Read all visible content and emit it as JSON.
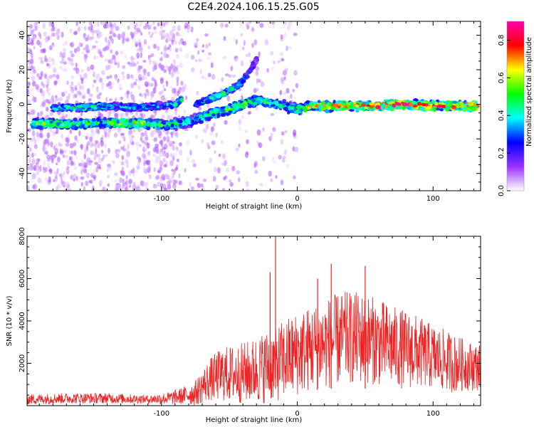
{
  "title": "C2E4.2024.106.15.25.G05",
  "chart_data": [
    {
      "type": "heatmap",
      "xlabel": "Height of straight line (km)",
      "ylabel": "Frequency (Hz)",
      "xlim": [
        -199,
        135
      ],
      "ylim": [
        -50,
        48
      ],
      "x_ticks": [
        -100,
        0,
        100
      ],
      "x_tick_labels": [
        "-100",
        "0",
        "100"
      ],
      "y_ticks": [
        -40,
        -20,
        0,
        20,
        40
      ],
      "y_tick_labels": [
        "-40",
        "-20",
        "0",
        "20",
        "40"
      ],
      "colorbar": {
        "label": "Normalized spectral amplitude",
        "range": [
          0,
          0.9
        ],
        "ticks": [
          0.0,
          0.2,
          0.4,
          0.6,
          0.8
        ],
        "tick_labels": [
          "0.0",
          "0.2",
          "0.4",
          "0.6",
          "0.8"
        ],
        "colormap": [
          "#ffffff",
          "#9b30ff",
          "#0000ff",
          "#00ffff",
          "#00ff00",
          "#ffff00",
          "#ff0000",
          "#ff00aa"
        ]
      },
      "traces": [
        {
          "x": [
            -195,
            -185,
            -170,
            -150,
            -130,
            -110,
            -95,
            -80,
            -65,
            -50,
            -40,
            -30,
            -20,
            -10,
            0,
            10,
            20,
            40,
            60,
            80,
            100,
            120,
            133
          ],
          "y": [
            -11,
            -11,
            -12,
            -11,
            -11,
            -11,
            -12,
            -10,
            -6,
            -3,
            0,
            2,
            1,
            -1,
            -3,
            -1,
            -1,
            -1,
            -1,
            0,
            -1,
            -1,
            -1
          ],
          "amplitude": [
            0.5,
            0.55,
            0.5,
            0.45,
            0.6,
            0.55,
            0.45,
            0.4,
            0.45,
            0.5,
            0.55,
            0.5,
            0.45,
            0.45,
            0.5,
            0.6,
            0.65,
            0.7,
            0.75,
            0.8,
            0.7,
            0.7,
            0.75
          ]
        },
        {
          "x": [
            -180,
            -160,
            -140,
            -120,
            -100,
            -90,
            -85
          ],
          "y": [
            -2,
            -2,
            -1,
            -2,
            -1,
            0,
            3
          ],
          "amplitude": [
            0.4,
            0.45,
            0.4,
            0.35,
            0.35,
            0.4,
            0.45
          ]
        },
        {
          "x": [
            -75,
            -65,
            -55,
            -48,
            -42,
            -36,
            -30
          ],
          "y": [
            0,
            3,
            6,
            9,
            12,
            18,
            26
          ],
          "amplitude": [
            0.4,
            0.45,
            0.5,
            0.45,
            0.35,
            0.25,
            0.2
          ]
        }
      ]
    },
    {
      "type": "line",
      "xlabel": "Height of straight line (km)",
      "ylabel": "SNR (10 * v/v)",
      "xlim": [
        -199,
        135
      ],
      "ylim": [
        0,
        8000
      ],
      "x_ticks": [
        -100,
        0,
        100
      ],
      "x_tick_labels": [
        "-100",
        "0",
        "100"
      ],
      "y_ticks": [
        2000,
        4000,
        6000,
        8000
      ],
      "y_tick_labels": [
        "2000",
        "4000",
        "6000",
        "8000"
      ],
      "color": "#ee2222",
      "envelope": {
        "x": [
          -199,
          -170,
          -140,
          -110,
          -95,
          -85,
          -75,
          -65,
          -55,
          -45,
          -35,
          -25,
          -15,
          -5,
          5,
          15,
          25,
          35,
          45,
          55,
          65,
          75,
          85,
          95,
          105,
          115,
          125,
          135
        ],
        "y_mean": [
          300,
          350,
          350,
          300,
          350,
          450,
          600,
          1200,
          1500,
          1500,
          1600,
          1800,
          2000,
          2300,
          2600,
          2800,
          3000,
          3200,
          3200,
          3100,
          2900,
          2700,
          2600,
          2400,
          2200,
          2000,
          1900,
          1800
        ],
        "y_spread": [
          250,
          250,
          250,
          200,
          300,
          400,
          600,
          1000,
          1300,
          1400,
          1500,
          1700,
          1800,
          2000,
          2000,
          2100,
          2200,
          2200,
          2200,
          2100,
          2000,
          1900,
          1800,
          1600,
          1500,
          1400,
          1200,
          1100
        ]
      },
      "peaks": [
        {
          "x": -16,
          "y": 8000
        },
        {
          "x": 25,
          "y": 6700
        },
        {
          "x": 50,
          "y": 6600
        },
        {
          "x": -20,
          "y": 6300
        },
        {
          "x": 15,
          "y": 6000
        }
      ]
    }
  ]
}
